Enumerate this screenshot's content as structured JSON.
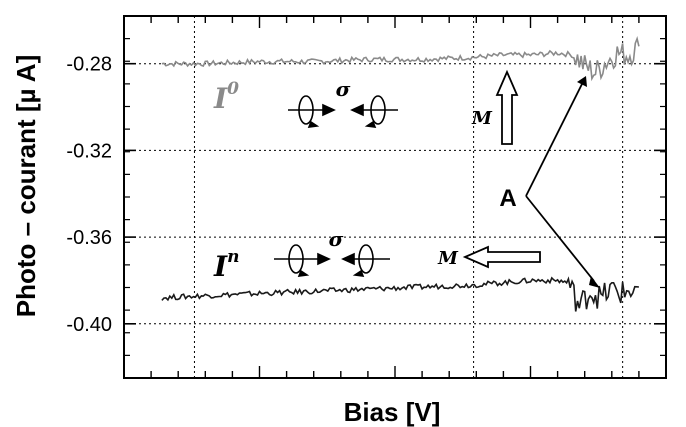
{
  "chart_data": {
    "type": "line",
    "title": "",
    "xlabel": "Bias [V]",
    "ylabel": "Photo – courant [µ A]",
    "ylim": [
      -0.425,
      -0.258
    ],
    "xlim": [
      0,
      1
    ],
    "x_tick_labels": [],
    "y_ticks": [
      -0.28,
      -0.32,
      -0.36,
      -0.4
    ],
    "y_tick_labels": [
      "-0.28",
      "-0.32",
      "-0.36",
      "-0.40"
    ],
    "grid": true,
    "series": [
      {
        "name": "I⁰",
        "color": "#8a8a8a",
        "x": [
          0.07,
          0.15,
          0.25,
          0.35,
          0.45,
          0.55,
          0.65,
          0.7,
          0.75,
          0.8,
          0.83,
          0.85,
          0.87,
          0.89,
          0.91,
          0.93,
          0.95
        ],
        "y": [
          -0.28,
          -0.28,
          -0.279,
          -0.279,
          -0.278,
          -0.278,
          -0.277,
          -0.276,
          -0.276,
          -0.275,
          -0.276,
          -0.281,
          -0.284,
          -0.279,
          -0.275,
          -0.276,
          -0.272
        ]
      },
      {
        "name": "Iⁿ",
        "color": "#1a1a1a",
        "x": [
          0.07,
          0.15,
          0.25,
          0.35,
          0.45,
          0.55,
          0.65,
          0.7,
          0.75,
          0.8,
          0.82,
          0.84,
          0.86,
          0.88,
          0.9,
          0.92,
          0.95
        ],
        "y": [
          -0.388,
          -0.387,
          -0.386,
          -0.385,
          -0.384,
          -0.383,
          -0.382,
          -0.381,
          -0.38,
          -0.38,
          -0.381,
          -0.392,
          -0.385,
          -0.388,
          -0.384,
          -0.386,
          -0.383
        ]
      }
    ],
    "annotations": {
      "label_A": "A",
      "label_sigma": "σ",
      "label_M": "M",
      "label_I0_main": "I",
      "label_I0_sup": "0",
      "label_In_main": "I",
      "label_In_sup": "n"
    }
  }
}
